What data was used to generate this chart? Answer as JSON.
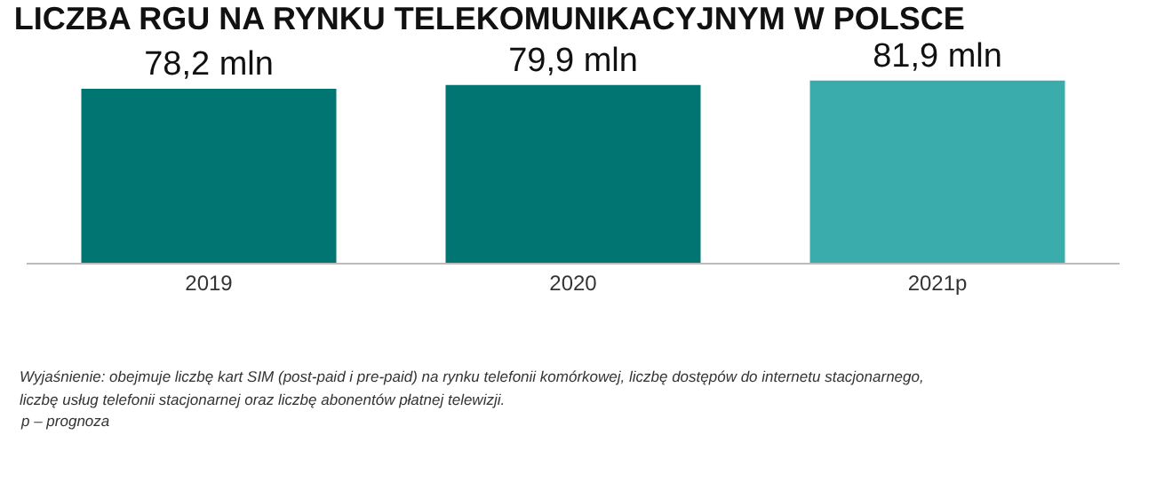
{
  "chart_data": {
    "type": "bar",
    "title": "LICZBA RGU NA RYNKU TELEKOMUNIKACYJNYM W POLSCE",
    "categories": [
      "2019",
      "2020",
      "2021p"
    ],
    "values": [
      78.2,
      79.9,
      81.9
    ],
    "colors": [
      "#007572",
      "#007572",
      "#3aacab"
    ],
    "value_labels": [
      "78,2 mln",
      "79,9 mln",
      "81,9 mln"
    ],
    "tick_labels": "x",
    "annotations": [
      "Wyjaśnienie: obejmuje liczbę kart SIM (post-paid i pre-paid) na rynku telefonii komórkowej, liczbę dostępów do internetu stacjonarnego,",
      "liczbę usług telefonii stacjonarnej oraz liczbę abonentów płatnej telewizji.",
      "p – prognoza"
    ]
  }
}
